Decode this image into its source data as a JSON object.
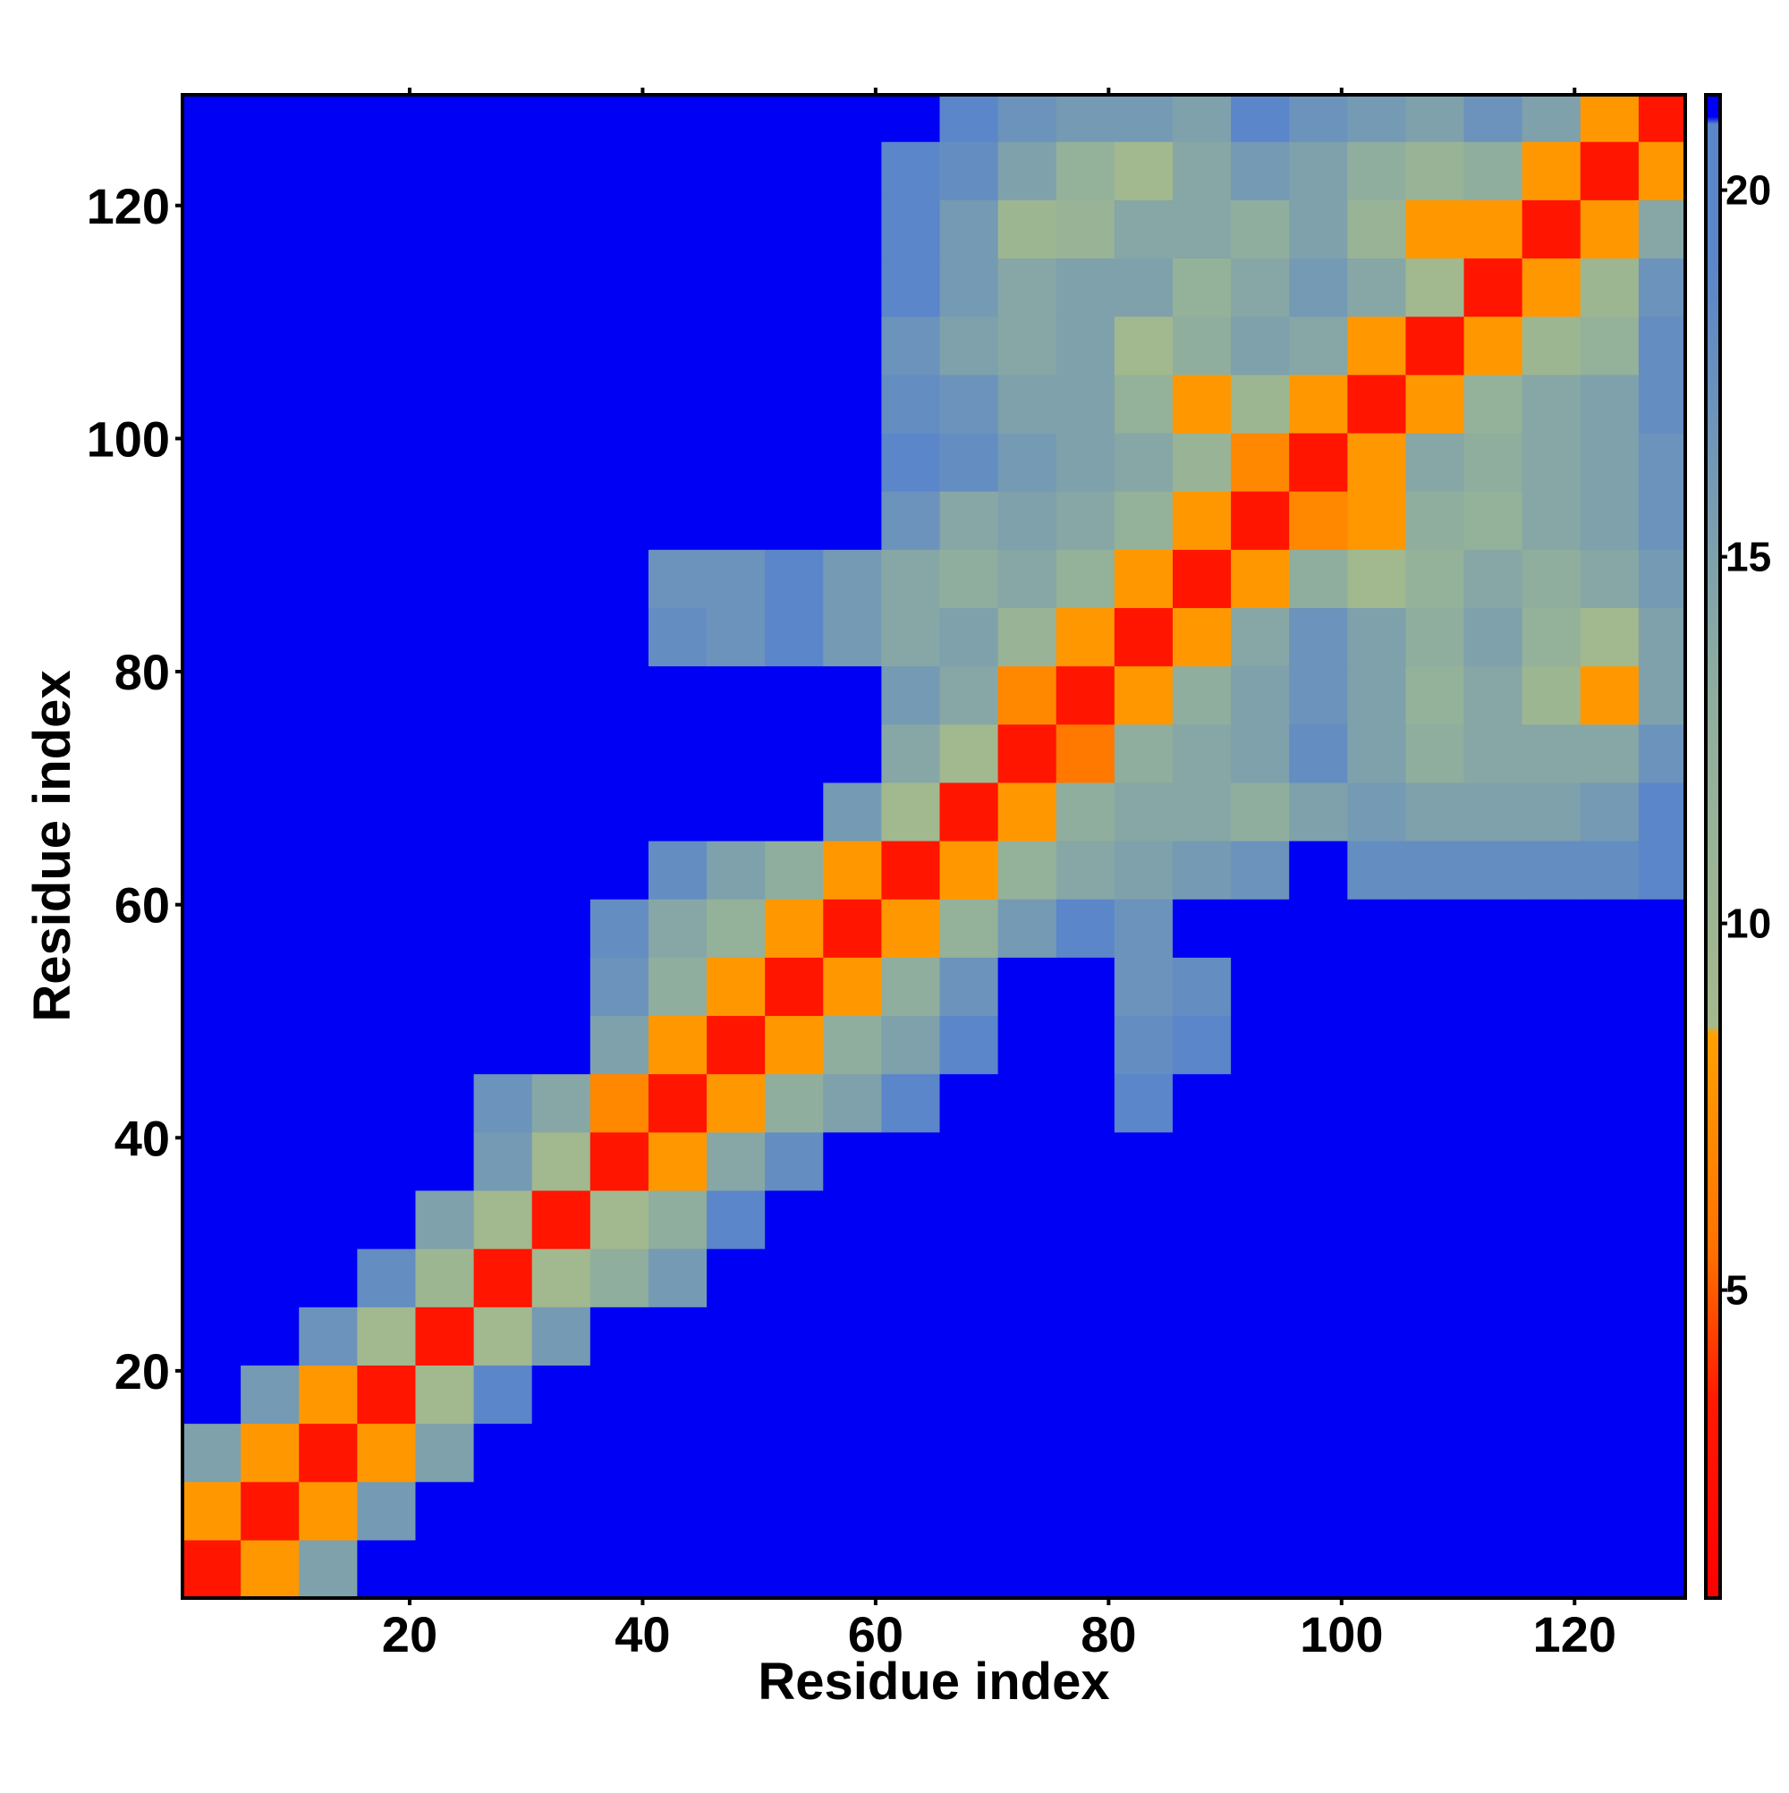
{
  "chart_data": {
    "type": "heatmap",
    "xlabel": "Residue index",
    "ylabel": "Residue index",
    "xlim": [
      0.5,
      129.5
    ],
    "ylim": [
      0.5,
      129.5
    ],
    "xticks": [
      20,
      40,
      60,
      80,
      100,
      120
    ],
    "yticks": [
      20,
      40,
      60,
      80,
      100,
      120
    ],
    "xbins": [
      0.5,
      5.5,
      10.5,
      15.5,
      20.5,
      25.5,
      30.5,
      35.5,
      40.5,
      45.5,
      50.5,
      55.5,
      60.5,
      65.5,
      70.5,
      75.5,
      80.5,
      85.5,
      90.5,
      95.5,
      100.5,
      105.5,
      110.5,
      115.5,
      120.5,
      125.5,
      129.5
    ],
    "ybins": [
      0.5,
      5.5,
      10.5,
      15.5,
      20.5,
      25.5,
      30.5,
      35.5,
      40.5,
      45.5,
      50.5,
      55.5,
      60.5,
      65.5,
      70.5,
      75.5,
      80.5,
      85.5,
      90.5,
      95.5,
      100.5,
      105.5,
      110.5,
      115.5,
      120.5,
      125.5,
      129.5
    ],
    "colorbar": {
      "lim": [
        0.8,
        21.3
      ],
      "ticks": [
        5,
        10,
        15,
        20
      ]
    },
    "colorscale": [
      [
        0.8,
        "#ff0000"
      ],
      [
        3.5,
        "#ff1a00"
      ],
      [
        5.5,
        "#ff7000"
      ],
      [
        8.5,
        "#ffa000"
      ],
      [
        8.6,
        "#a4b98c"
      ],
      [
        13,
        "#8fae9e"
      ],
      [
        19,
        "#5b86c9"
      ],
      [
        20.9,
        "#5b86c9"
      ],
      [
        21,
        "#0000f5"
      ],
      [
        21.3,
        "#0000f5"
      ]
    ],
    "z": [
      [
        3,
        8,
        15,
        21.3,
        21.3,
        21.3,
        21.3,
        21.3,
        21.3,
        21.3,
        21.3,
        21.3,
        21.3,
        21.3,
        21.3,
        21.3,
        21.3,
        21.3,
        21.3,
        21.3,
        21.3,
        21.3,
        21.3,
        21.3,
        21.3,
        21.3
      ],
      [
        8,
        3,
        8,
        16,
        21.3,
        21.3,
        21.3,
        21.3,
        21.3,
        21.3,
        21.3,
        21.3,
        21.3,
        21.3,
        21.3,
        21.3,
        21.3,
        21.3,
        21.3,
        21.3,
        21.3,
        21.3,
        21.3,
        21.3,
        21.3,
        21.3
      ],
      [
        15,
        8,
        3,
        8,
        15,
        21.3,
        21.3,
        21.3,
        21.3,
        21.3,
        21.3,
        21.3,
        21.3,
        21.3,
        21.3,
        21.3,
        21.3,
        21.3,
        21.3,
        21.3,
        21.3,
        21.3,
        21.3,
        21.3,
        21.3,
        21.3
      ],
      [
        21.3,
        16,
        8,
        3,
        9,
        19,
        21.3,
        21.3,
        21.3,
        21.3,
        21.3,
        21.3,
        21.3,
        21.3,
        21.3,
        21.3,
        21.3,
        21.3,
        21.3,
        21.3,
        21.3,
        21.3,
        21.3,
        21.3,
        21.3,
        21.3
      ],
      [
        21.3,
        21.3,
        17,
        9,
        3,
        9,
        16,
        21.3,
        21.3,
        21.3,
        21.3,
        21.3,
        21.3,
        21.3,
        21.3,
        21.3,
        21.3,
        21.3,
        21.3,
        21.3,
        21.3,
        21.3,
        21.3,
        21.3,
        21.3,
        21.3
      ],
      [
        21.3,
        21.3,
        21.3,
        18,
        10,
        3,
        9,
        13,
        16,
        21.3,
        21.3,
        21.3,
        21.3,
        21.3,
        21.3,
        21.3,
        21.3,
        21.3,
        21.3,
        21.3,
        21.3,
        21.3,
        21.3,
        21.3,
        21.3,
        21.3
      ],
      [
        21.3,
        21.3,
        21.3,
        21.3,
        15,
        9,
        3,
        9,
        13,
        19,
        21.3,
        21.3,
        21.3,
        21.3,
        21.3,
        21.3,
        21.3,
        21.3,
        21.3,
        21.3,
        21.3,
        21.3,
        21.3,
        21.3,
        21.3,
        21.3
      ],
      [
        21.3,
        21.3,
        21.3,
        21.3,
        21.3,
        16,
        9,
        3,
        8,
        14,
        18,
        21.3,
        21.3,
        21.3,
        21.3,
        21.3,
        21.3,
        21.3,
        21.3,
        21.3,
        21.3,
        21.3,
        21.3,
        21.3,
        21.3,
        21.3
      ],
      [
        21.3,
        21.3,
        21.3,
        21.3,
        21.3,
        17,
        14,
        7,
        3,
        8,
        13,
        15,
        19,
        21.3,
        21.3,
        21.3,
        19,
        21.3,
        21.3,
        21.3,
        21.3,
        21.3,
        21.3,
        21.3,
        21.3,
        21.3
      ],
      [
        21.3,
        21.3,
        21.3,
        21.3,
        21.3,
        21.3,
        21.3,
        15,
        8,
        3,
        8,
        13,
        15,
        19,
        21.3,
        21.3,
        18,
        19,
        21.3,
        21.3,
        21.3,
        21.3,
        21.3,
        21.3,
        21.3,
        21.3
      ],
      [
        21.3,
        21.3,
        21.3,
        21.3,
        21.3,
        21.3,
        21.3,
        17,
        13,
        8,
        3,
        8,
        13,
        17,
        21.3,
        21.3,
        17,
        18,
        21.3,
        21.3,
        21.3,
        21.3,
        21.3,
        21.3,
        21.3,
        21.3
      ],
      [
        21.3,
        21.3,
        21.3,
        21.3,
        21.3,
        21.3,
        21.3,
        18,
        14,
        12,
        8,
        3,
        8,
        12,
        16,
        19,
        17,
        21.3,
        21.3,
        21.3,
        21.3,
        21.3,
        21.3,
        21.3,
        21.3,
        21.3
      ],
      [
        21.3,
        21.3,
        21.3,
        21.3,
        21.3,
        21.3,
        21.3,
        21.3,
        18,
        15,
        13,
        8,
        3,
        8,
        12,
        14,
        15,
        16,
        17,
        21.3,
        18,
        18,
        18,
        18,
        18,
        19
      ],
      [
        21.3,
        21.3,
        21.3,
        21.3,
        21.3,
        21.3,
        21.3,
        21.3,
        21.3,
        21.3,
        21.3,
        16,
        9,
        3,
        8,
        13,
        14,
        14,
        13,
        15,
        16,
        15,
        15,
        15,
        16,
        19
      ],
      [
        21.3,
        21.3,
        21.3,
        21.3,
        21.3,
        21.3,
        21.3,
        21.3,
        21.3,
        21.3,
        21.3,
        21.3,
        14,
        9,
        3,
        6,
        13,
        14,
        15,
        18,
        15,
        13,
        14,
        14,
        14,
        17
      ],
      [
        21.3,
        21.3,
        21.3,
        21.3,
        21.3,
        21.3,
        21.3,
        21.3,
        21.3,
        21.3,
        21.3,
        21.3,
        16,
        14,
        7,
        3,
        8,
        13,
        15,
        17,
        15,
        12,
        14,
        10,
        8,
        15
      ],
      [
        21.3,
        21.3,
        21.3,
        21.3,
        21.3,
        21.3,
        21.3,
        21.3,
        18,
        17,
        19,
        16,
        14,
        15,
        11,
        8,
        3,
        8,
        14,
        17,
        15,
        13,
        15,
        12,
        9,
        15
      ],
      [
        21.3,
        21.3,
        21.3,
        21.3,
        21.3,
        21.3,
        21.3,
        21.3,
        17,
        17,
        20,
        16,
        14,
        13,
        14,
        12,
        8,
        3,
        8,
        13,
        9,
        12,
        14,
        13,
        14,
        16
      ],
      [
        21.3,
        21.3,
        21.3,
        21.3,
        21.3,
        21.3,
        21.3,
        21.3,
        21.3,
        21.3,
        21.3,
        21.3,
        17,
        14,
        15,
        14,
        12,
        8,
        3,
        7,
        8,
        13,
        12,
        14,
        15,
        17
      ],
      [
        21.3,
        21.3,
        21.3,
        21.3,
        21.3,
        21.3,
        21.3,
        21.3,
        21.3,
        21.3,
        21.3,
        21.3,
        19,
        18,
        16,
        15,
        14,
        11,
        7,
        3,
        8,
        14,
        13,
        14,
        15,
        17
      ],
      [
        21.3,
        21.3,
        21.3,
        21.3,
        21.3,
        21.3,
        21.3,
        21.3,
        21.3,
        21.3,
        21.3,
        21.3,
        18,
        17,
        15,
        15,
        12,
        8,
        10,
        8,
        3,
        8,
        12,
        14,
        15,
        18
      ],
      [
        21.3,
        21.3,
        21.3,
        21.3,
        21.3,
        21.3,
        21.3,
        21.3,
        21.3,
        21.3,
        21.3,
        21.3,
        17,
        15,
        14,
        15,
        9,
        13,
        15,
        14,
        8,
        3,
        8,
        10,
        12,
        18
      ],
      [
        21.3,
        21.3,
        21.3,
        21.3,
        21.3,
        21.3,
        21.3,
        21.3,
        21.3,
        21.3,
        21.3,
        21.3,
        19,
        16,
        14,
        15,
        15,
        12,
        14,
        16,
        14,
        9,
        3,
        8,
        10,
        17
      ],
      [
        21.3,
        21.3,
        21.3,
        21.3,
        21.3,
        21.3,
        21.3,
        21.3,
        21.3,
        21.3,
        21.3,
        21.3,
        19,
        16,
        10,
        11,
        14,
        14,
        13,
        15,
        11,
        8,
        8,
        3,
        8,
        14
      ],
      [
        21.3,
        21.3,
        21.3,
        21.3,
        21.3,
        21.3,
        21.3,
        21.3,
        21.3,
        21.3,
        21.3,
        21.3,
        19,
        18,
        15,
        12,
        9,
        14,
        16,
        15,
        13,
        11,
        13,
        8,
        3,
        8
      ],
      [
        21.3,
        21.3,
        21.3,
        21.3,
        21.3,
        21.3,
        21.3,
        21.3,
        21.3,
        21.3,
        21.3,
        21.3,
        21.3,
        19,
        17,
        16,
        16,
        15,
        19,
        17,
        16,
        15,
        17,
        15,
        8,
        3
      ]
    ]
  }
}
